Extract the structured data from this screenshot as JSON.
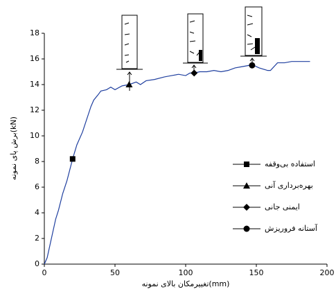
{
  "chart_data": {
    "type": "line",
    "x_label": "تغییرمکان بالای نمونه(mm)",
    "y_label": "برش پای نمونه(kN)",
    "xlim": [
      0,
      200
    ],
    "xticks": [
      0,
      50,
      100,
      150,
      200
    ],
    "ylim": [
      0,
      18
    ],
    "yticks": [
      0,
      2,
      4,
      6,
      8,
      10,
      12,
      14,
      16,
      18
    ],
    "series": [
      {
        "color": "#1f3f9f",
        "x": [
          0,
          2,
          5,
          8,
          10,
          13,
          16,
          20,
          23,
          27,
          30,
          33,
          35,
          38,
          40,
          44,
          47,
          50,
          55,
          60,
          65,
          68,
          72,
          78,
          85,
          90,
          95,
          100,
          103,
          106,
          110,
          115,
          120,
          125,
          130,
          135,
          140,
          145,
          148,
          152,
          158,
          160,
          165,
          170,
          175,
          180,
          188
        ],
        "values": [
          0,
          0.5,
          2,
          3.5,
          4.2,
          5.5,
          6.5,
          8.2,
          9.3,
          10.3,
          11.3,
          12.3,
          12.8,
          13.2,
          13.5,
          13.6,
          13.8,
          13.6,
          13.9,
          14.0,
          14.2,
          14.0,
          14.3,
          14.4,
          14.6,
          14.7,
          14.8,
          14.7,
          14.9,
          14.9,
          15.0,
          15.0,
          15.1,
          15.0,
          15.1,
          15.3,
          15.4,
          15.5,
          15.5,
          15.3,
          15.1,
          15.1,
          15.7,
          15.7,
          15.8,
          15.8,
          15.8
        ]
      }
    ],
    "performance_points": [
      {
        "name": "استفاده بی‌وقفه",
        "marker": "square",
        "x": 20,
        "y": 8.2
      },
      {
        "name": "بهره‌برداری آنی",
        "marker": "triangle",
        "x": 60,
        "y": 14.0
      },
      {
        "name": "ایمنی جانی",
        "marker": "diamond",
        "x": 106,
        "y": 14.9
      },
      {
        "name": "آستانه فروریزش",
        "marker": "circle",
        "x": 147,
        "y": 15.5
      }
    ],
    "legend": "right",
    "marker_color": "#000000"
  }
}
